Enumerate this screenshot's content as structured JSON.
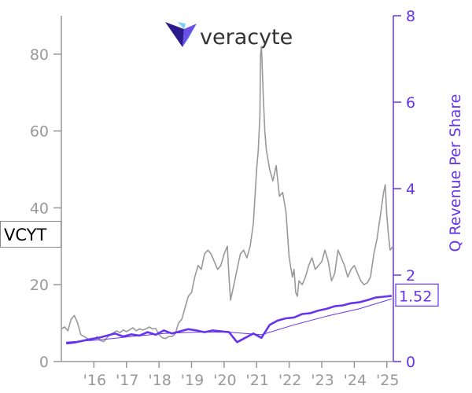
{
  "chart_data": {
    "type": "line",
    "ticker": "VCYT",
    "logo": {
      "text": "veracyte",
      "colors": [
        "#2a1a8a",
        "#6a4fe8",
        "#2fa8e8",
        "#7ad0f5"
      ]
    },
    "ylabel_right": "Q Revenue Per Share",
    "ylim_left": [
      0,
      90
    ],
    "ylim_right": [
      0,
      8
    ],
    "xlim": [
      2015.0,
      2025.2
    ],
    "x_ticks": [
      {
        "x": 2016,
        "label": "'16"
      },
      {
        "x": 2017,
        "label": "'17"
      },
      {
        "x": 2018,
        "label": "'18"
      },
      {
        "x": 2019,
        "label": "'19"
      },
      {
        "x": 2020,
        "label": "'20"
      },
      {
        "x": 2021,
        "label": "'21"
      },
      {
        "x": 2022,
        "label": "'22"
      },
      {
        "x": 2023,
        "label": "'23"
      },
      {
        "x": 2024,
        "label": "'24"
      },
      {
        "x": 2025,
        "label": "'25"
      }
    ],
    "y_ticks_left": [
      0,
      20,
      40,
      60,
      80
    ],
    "y_ticks_right": [
      0,
      2,
      4,
      6,
      8
    ],
    "last_value_label": "1.52",
    "colors": {
      "price": "#999999",
      "revenue": "#6633ee",
      "axis_left": "#999999",
      "axis_right": "#6633ee"
    },
    "series": [
      {
        "axis": "left",
        "color": "#999999",
        "points": [
          [
            2015.0,
            8.5
          ],
          [
            2015.1,
            9
          ],
          [
            2015.2,
            8
          ],
          [
            2015.3,
            11
          ],
          [
            2015.4,
            12
          ],
          [
            2015.5,
            10
          ],
          [
            2015.6,
            7
          ],
          [
            2015.7,
            6.5
          ],
          [
            2015.8,
            6
          ],
          [
            2015.9,
            5.5
          ],
          [
            2016.0,
            5.8
          ],
          [
            2016.1,
            6.5
          ],
          [
            2016.2,
            5.5
          ],
          [
            2016.3,
            5.2
          ],
          [
            2016.4,
            6.2
          ],
          [
            2016.5,
            7
          ],
          [
            2016.6,
            7.5
          ],
          [
            2016.7,
            8
          ],
          [
            2016.8,
            7.5
          ],
          [
            2016.9,
            8.2
          ],
          [
            2017.0,
            7.8
          ],
          [
            2017.1,
            8.3
          ],
          [
            2017.2,
            8.8
          ],
          [
            2017.3,
            8
          ],
          [
            2017.4,
            8.5
          ],
          [
            2017.5,
            8.2
          ],
          [
            2017.6,
            8.5
          ],
          [
            2017.7,
            9
          ],
          [
            2017.8,
            8.5
          ],
          [
            2017.9,
            8.6
          ],
          [
            2018.0,
            7
          ],
          [
            2018.1,
            6.2
          ],
          [
            2018.2,
            6
          ],
          [
            2018.3,
            6.5
          ],
          [
            2018.4,
            6.5
          ],
          [
            2018.5,
            7.2
          ],
          [
            2018.6,
            10
          ],
          [
            2018.7,
            11
          ],
          [
            2018.8,
            14
          ],
          [
            2018.9,
            17
          ],
          [
            2019.0,
            18
          ],
          [
            2019.1,
            22
          ],
          [
            2019.2,
            25
          ],
          [
            2019.3,
            24
          ],
          [
            2019.4,
            28
          ],
          [
            2019.5,
            29
          ],
          [
            2019.6,
            28
          ],
          [
            2019.7,
            26
          ],
          [
            2019.8,
            24
          ],
          [
            2019.9,
            25
          ],
          [
            2020.0,
            28
          ],
          [
            2020.1,
            30
          ],
          [
            2020.15,
            22
          ],
          [
            2020.2,
            16
          ],
          [
            2020.3,
            20
          ],
          [
            2020.4,
            24
          ],
          [
            2020.5,
            28
          ],
          [
            2020.6,
            29
          ],
          [
            2020.7,
            27
          ],
          [
            2020.8,
            30
          ],
          [
            2020.9,
            36
          ],
          [
            2021.0,
            50
          ],
          [
            2021.05,
            55
          ],
          [
            2021.1,
            64
          ],
          [
            2021.12,
            80
          ],
          [
            2021.15,
            82
          ],
          [
            2021.2,
            70
          ],
          [
            2021.25,
            60
          ],
          [
            2021.3,
            55
          ],
          [
            2021.4,
            50
          ],
          [
            2021.5,
            47
          ],
          [
            2021.6,
            51
          ],
          [
            2021.7,
            43
          ],
          [
            2021.8,
            44
          ],
          [
            2021.9,
            39
          ],
          [
            2022.0,
            27
          ],
          [
            2022.1,
            22
          ],
          [
            2022.15,
            24
          ],
          [
            2022.2,
            18
          ],
          [
            2022.25,
            17
          ],
          [
            2022.3,
            21
          ],
          [
            2022.4,
            20
          ],
          [
            2022.5,
            22
          ],
          [
            2022.6,
            25
          ],
          [
            2022.7,
            27
          ],
          [
            2022.8,
            24
          ],
          [
            2022.9,
            25
          ],
          [
            2023.0,
            26
          ],
          [
            2023.1,
            29
          ],
          [
            2023.2,
            26
          ],
          [
            2023.3,
            21
          ],
          [
            2023.4,
            23
          ],
          [
            2023.5,
            29
          ],
          [
            2023.6,
            27
          ],
          [
            2023.7,
            25
          ],
          [
            2023.8,
            22
          ],
          [
            2023.9,
            24
          ],
          [
            2024.0,
            25
          ],
          [
            2024.1,
            23
          ],
          [
            2024.2,
            21
          ],
          [
            2024.3,
            20
          ],
          [
            2024.4,
            20.5
          ],
          [
            2024.5,
            22
          ],
          [
            2024.6,
            28
          ],
          [
            2024.7,
            32
          ],
          [
            2024.8,
            38
          ],
          [
            2024.9,
            44
          ],
          [
            2024.95,
            46
          ],
          [
            2025.0,
            38
          ],
          [
            2025.05,
            33
          ],
          [
            2025.1,
            29
          ],
          [
            2025.2,
            30
          ]
        ]
      },
      {
        "axis": "right",
        "color": "#6633ee",
        "points": [
          [
            2015.15,
            0.42
          ],
          [
            2015.4,
            0.44
          ],
          [
            2015.65,
            0.48
          ],
          [
            2015.9,
            0.52
          ],
          [
            2016.15,
            0.55
          ],
          [
            2016.4,
            0.6
          ],
          [
            2016.65,
            0.65
          ],
          [
            2016.9,
            0.58
          ],
          [
            2017.15,
            0.63
          ],
          [
            2017.4,
            0.6
          ],
          [
            2017.65,
            0.68
          ],
          [
            2017.9,
            0.62
          ],
          [
            2018.15,
            0.72
          ],
          [
            2018.4,
            0.65
          ],
          [
            2018.65,
            0.7
          ],
          [
            2018.9,
            0.75
          ],
          [
            2019.15,
            0.72
          ],
          [
            2019.4,
            0.68
          ],
          [
            2019.65,
            0.72
          ],
          [
            2019.9,
            0.7
          ],
          [
            2020.15,
            0.68
          ],
          [
            2020.4,
            0.45
          ],
          [
            2020.65,
            0.55
          ],
          [
            2020.9,
            0.65
          ],
          [
            2021.15,
            0.55
          ],
          [
            2021.4,
            0.85
          ],
          [
            2021.65,
            0.95
          ],
          [
            2021.9,
            1.0
          ],
          [
            2022.15,
            1.02
          ],
          [
            2022.4,
            1.1
          ],
          [
            2022.65,
            1.12
          ],
          [
            2022.9,
            1.18
          ],
          [
            2023.15,
            1.22
          ],
          [
            2023.4,
            1.28
          ],
          [
            2023.65,
            1.3
          ],
          [
            2023.9,
            1.35
          ],
          [
            2024.15,
            1.37
          ],
          [
            2024.4,
            1.42
          ],
          [
            2024.65,
            1.48
          ],
          [
            2024.9,
            1.5
          ],
          [
            2025.15,
            1.52
          ]
        ]
      },
      {
        "axis": "right",
        "color": "#6633ee",
        "thin": true,
        "points": [
          [
            2015.15,
            0.45
          ],
          [
            2016.15,
            0.5
          ],
          [
            2017.15,
            0.58
          ],
          [
            2018.15,
            0.65
          ],
          [
            2019.15,
            0.68
          ],
          [
            2020.15,
            0.68
          ],
          [
            2021.15,
            0.62
          ],
          [
            2022.15,
            0.85
          ],
          [
            2023.15,
            1.05
          ],
          [
            2024.15,
            1.22
          ],
          [
            2025.15,
            1.45
          ]
        ]
      }
    ]
  }
}
